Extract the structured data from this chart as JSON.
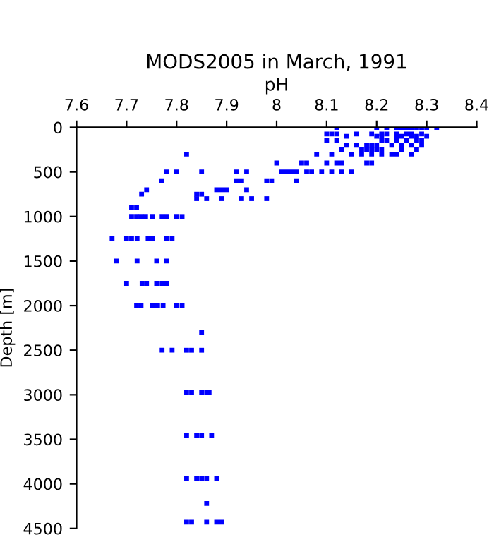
{
  "chart_data": {
    "type": "scatter",
    "title": "MODS2005 in March, 1991",
    "xlabel": "pH",
    "ylabel": "Depth [m]",
    "xlim": [
      7.6,
      8.4
    ],
    "xticks": [
      7.6,
      7.7,
      7.8,
      7.9,
      8,
      8.1,
      8.2,
      8.3,
      8.4
    ],
    "ylim": [
      4500,
      0
    ],
    "yticks": [
      0,
      500,
      1000,
      1500,
      2000,
      2500,
      3000,
      3500,
      4000,
      4500
    ],
    "marker": "square",
    "grid": false,
    "series": [
      {
        "color": "#0000ff",
        "x": [
          8.12,
          8.2,
          8.22,
          8.24,
          8.25,
          8.26,
          8.27,
          8.28,
          8.29,
          8.3,
          8.32,
          8.1,
          8.11,
          8.12,
          8.16,
          8.19,
          8.21,
          8.22,
          8.24,
          8.26,
          8.27,
          8.29,
          8.14,
          8.2,
          8.21,
          8.24,
          8.25,
          8.27,
          8.28,
          8.3,
          8.1,
          8.12,
          8.21,
          8.22,
          8.24,
          8.26,
          8.28,
          8.29,
          8.14,
          8.16,
          8.18,
          8.19,
          8.2,
          8.23,
          8.25,
          8.27,
          8.29,
          8.13,
          8.17,
          8.18,
          8.19,
          8.2,
          8.21,
          8.25,
          8.28,
          7.82,
          8.08,
          8.11,
          8.15,
          8.17,
          8.19,
          8.21,
          8.23,
          8.24,
          8.27,
          8.0,
          8.05,
          8.06,
          8.1,
          8.12,
          8.13,
          8.18,
          8.19,
          7.78,
          7.8,
          7.85,
          7.92,
          7.94,
          8.01,
          8.02,
          8.03,
          8.04,
          8.06,
          8.07,
          8.09,
          8.11,
          8.13,
          8.15,
          7.77,
          7.92,
          7.93,
          7.98,
          7.99,
          8.04,
          7.74,
          7.88,
          7.89,
          7.9,
          7.94,
          7.73,
          7.84,
          7.85,
          7.71,
          7.72,
          7.84,
          7.86,
          7.89,
          7.93,
          7.95,
          7.98,
          7.71,
          7.72,
          7.729,
          7.738,
          7.752,
          7.771,
          7.78,
          7.8,
          7.811,
          7.671,
          7.7,
          7.71,
          7.721,
          7.743,
          7.752,
          7.78,
          7.791,
          7.68,
          7.721,
          7.76,
          7.78,
          7.7,
          7.731,
          7.74,
          7.76,
          7.771,
          7.78,
          7.72,
          7.729,
          7.752,
          7.762,
          7.773,
          7.8,
          7.811,
          7.85,
          7.771,
          7.791,
          7.82,
          7.83,
          7.85,
          7.82,
          7.83,
          7.85,
          7.86,
          7.865,
          7.82,
          7.84,
          7.85,
          7.87,
          7.82,
          7.84,
          7.85,
          7.86,
          7.88,
          7.86,
          7.82,
          7.83,
          7.86,
          7.88,
          7.89
        ],
        "values": [
          0,
          0,
          0,
          0,
          0,
          0,
          0,
          0,
          0,
          0,
          0,
          75,
          75,
          75,
          75,
          75,
          75,
          75,
          75,
          75,
          75,
          75,
          100,
          100,
          100,
          100,
          100,
          100,
          100,
          100,
          150,
          150,
          150,
          150,
          150,
          150,
          150,
          150,
          200,
          200,
          200,
          200,
          200,
          200,
          200,
          200,
          200,
          250,
          250,
          250,
          250,
          250,
          250,
          250,
          250,
          300,
          300,
          300,
          300,
          300,
          300,
          300,
          300,
          300,
          300,
          400,
          400,
          400,
          400,
          400,
          400,
          400,
          400,
          500,
          500,
          500,
          500,
          500,
          500,
          500,
          500,
          500,
          500,
          500,
          500,
          500,
          500,
          500,
          600,
          600,
          600,
          600,
          600,
          600,
          700,
          700,
          700,
          700,
          700,
          750,
          750,
          750,
          900,
          900,
          800,
          800,
          800,
          800,
          800,
          800,
          1000,
          1000,
          1000,
          1000,
          1000,
          1000,
          1000,
          1000,
          1000,
          1250,
          1250,
          1250,
          1250,
          1250,
          1250,
          1250,
          1250,
          1500,
          1500,
          1500,
          1500,
          1750,
          1750,
          1750,
          1750,
          1750,
          1750,
          2000,
          2000,
          2000,
          2000,
          2000,
          2000,
          2000,
          2300,
          2500,
          2500,
          2500,
          2500,
          2500,
          2970,
          2970,
          2970,
          2970,
          2970,
          3460,
          3460,
          3460,
          3460,
          3940,
          3940,
          3940,
          3940,
          3940,
          4220,
          4430,
          4430,
          4430,
          4430,
          4430
        ]
      }
    ]
  }
}
